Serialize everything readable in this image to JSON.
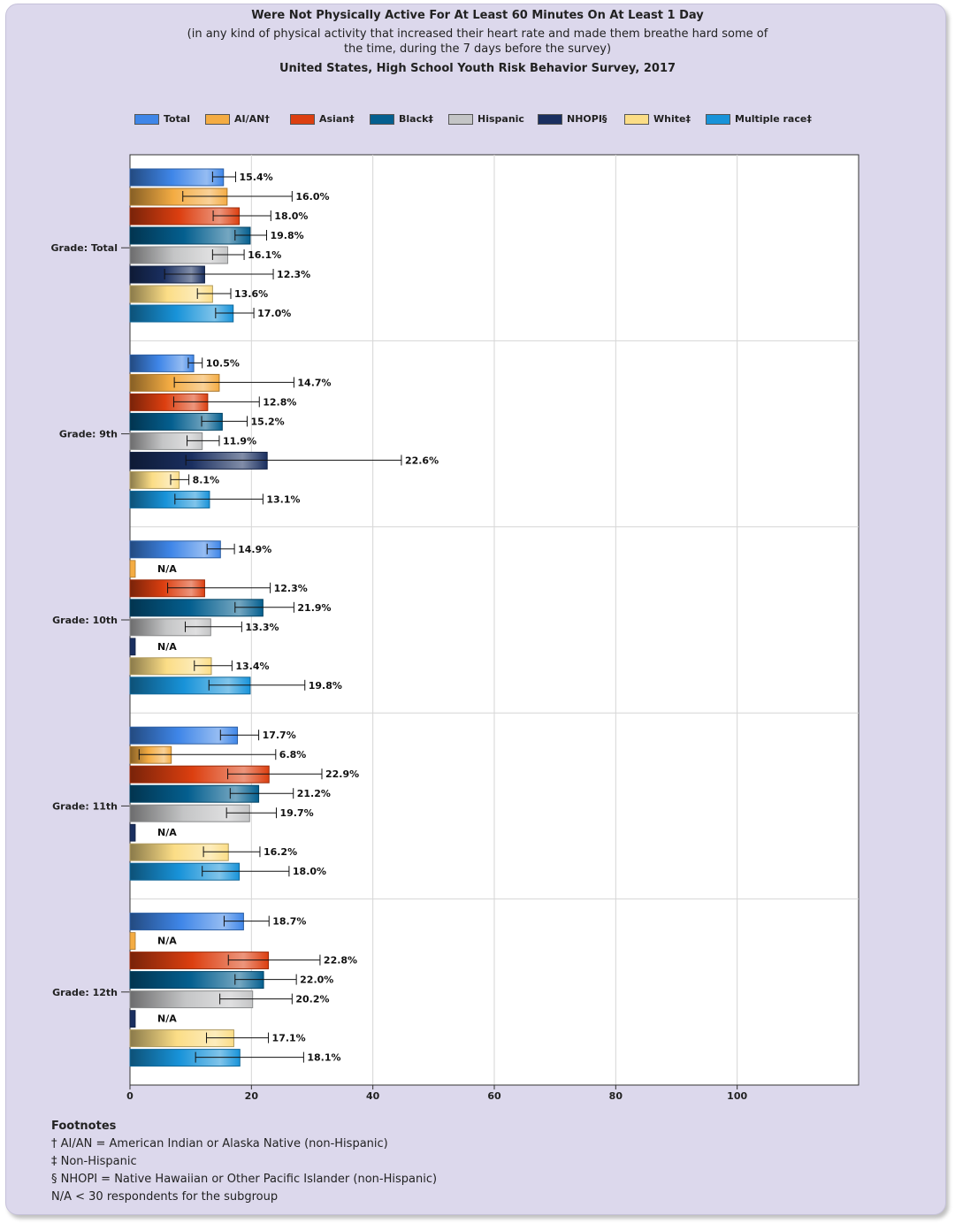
{
  "title": "Were Not Physically Active For At Least 60 Minutes On At Least 1 Day",
  "subtitle": "(in any kind of physical activity that increased their heart rate and made them breathe hard some of the time, during the 7 days before the survey)",
  "survey": "United States, High School Youth Risk Behavior Survey, 2017",
  "colors": {
    "Total": "#3f86e8",
    "AI/AN†": "#f4ac43",
    "Asian‡": "#dc3f10",
    "Black‡": "#045f8f",
    "Hispanic": "#c4c5c6",
    "NHOPI§": "#1a2f60",
    "White‡": "#fbdd86",
    "Multiple race‡": "#1893d9"
  },
  "chart_data": {
    "type": "bar",
    "orientation": "horizontal",
    "categories": [
      "Grade: Total",
      "Grade: 9th",
      "Grade: 10th",
      "Grade: 11th",
      "Grade: 12th"
    ],
    "series": [
      {
        "name": "Total",
        "values": [
          15.4,
          10.5,
          14.9,
          17.7,
          18.7
        ],
        "ci_low": [
          13.6,
          9.6,
          12.7,
          14.9,
          15.5
        ],
        "ci_high": [
          17.4,
          11.9,
          17.2,
          21.2,
          22.9
        ],
        "labels": [
          "15.4%",
          "10.5%",
          "14.9%",
          "17.7%",
          "18.7%"
        ]
      },
      {
        "name": "AI/AN†",
        "values": [
          16.0,
          14.7,
          null,
          6.8,
          null
        ],
        "ci_low": [
          8.7,
          7.3,
          null,
          1.5,
          null
        ],
        "ci_high": [
          26.7,
          27.0,
          null,
          24.0,
          null
        ],
        "labels": [
          "16.0%",
          "14.7%",
          "N/A",
          "6.8%",
          "N/A"
        ]
      },
      {
        "name": "Asian‡",
        "values": [
          18.0,
          12.8,
          12.3,
          22.9,
          22.8
        ],
        "ci_low": [
          13.7,
          7.2,
          6.2,
          16.1,
          16.2
        ],
        "ci_high": [
          23.2,
          21.3,
          23.1,
          31.6,
          31.3
        ],
        "labels": [
          "18.0%",
          "12.8%",
          "12.3%",
          "22.9%",
          "22.8%"
        ]
      },
      {
        "name": "Black‡",
        "values": [
          19.8,
          15.2,
          21.9,
          21.2,
          22.0
        ],
        "ci_low": [
          17.3,
          11.8,
          17.3,
          16.5,
          17.3
        ],
        "ci_high": [
          22.5,
          19.3,
          27.0,
          26.9,
          27.4
        ],
        "labels": [
          "19.8%",
          "15.2%",
          "21.9%",
          "21.2%",
          "22.0%"
        ]
      },
      {
        "name": "Hispanic",
        "values": [
          16.1,
          11.9,
          13.3,
          19.7,
          20.2
        ],
        "ci_low": [
          13.6,
          9.4,
          9.1,
          15.9,
          14.8
        ],
        "ci_high": [
          18.8,
          14.7,
          18.4,
          24.1,
          26.7
        ],
        "labels": [
          "16.1%",
          "11.9%",
          "13.3%",
          "19.7%",
          "20.2%"
        ]
      },
      {
        "name": "NHOPI§",
        "values": [
          12.3,
          22.6,
          null,
          null,
          null
        ],
        "ci_low": [
          5.7,
          9.2,
          null,
          null,
          null
        ],
        "ci_high": [
          23.6,
          44.7,
          null,
          null,
          null
        ],
        "labels": [
          "12.3%",
          "22.6%",
          "N/A",
          "N/A",
          "N/A"
        ]
      },
      {
        "name": "White‡",
        "values": [
          13.6,
          8.1,
          13.4,
          16.2,
          17.1
        ],
        "ci_low": [
          11.1,
          6.7,
          10.6,
          12.1,
          12.6
        ],
        "ci_high": [
          16.6,
          9.7,
          16.8,
          21.4,
          22.8
        ],
        "labels": [
          "13.6%",
          "8.1%",
          "13.4%",
          "16.2%",
          "17.1%"
        ]
      },
      {
        "name": "Multiple race‡",
        "values": [
          17.0,
          13.1,
          19.8,
          18.0,
          18.1
        ],
        "ci_low": [
          14.1,
          7.4,
          13.0,
          11.9,
          10.8
        ],
        "ci_high": [
          20.4,
          21.9,
          28.8,
          26.2,
          28.6
        ],
        "labels": [
          "17.0%",
          "13.1%",
          "19.8%",
          "18.0%",
          "18.1%"
        ]
      }
    ],
    "xlim": [
      0,
      120
    ],
    "xticks": [
      0,
      20,
      40,
      60,
      80,
      100
    ],
    "xtick_labels": [
      "0",
      "20",
      "40",
      "60",
      "80",
      "100"
    ],
    "grid": true,
    "legend_position": "top",
    "na_label": "N/A"
  },
  "footnotes": {
    "heading": "Footnotes",
    "lines": [
      "† AI/AN = American Indian or Alaska Native (non-Hispanic)",
      "‡ Non-Hispanic",
      "§ NHOPI = Native Hawaiian or Other Pacific Islander (non-Hispanic)",
      "N/A < 30 respondents for the subgroup"
    ]
  }
}
